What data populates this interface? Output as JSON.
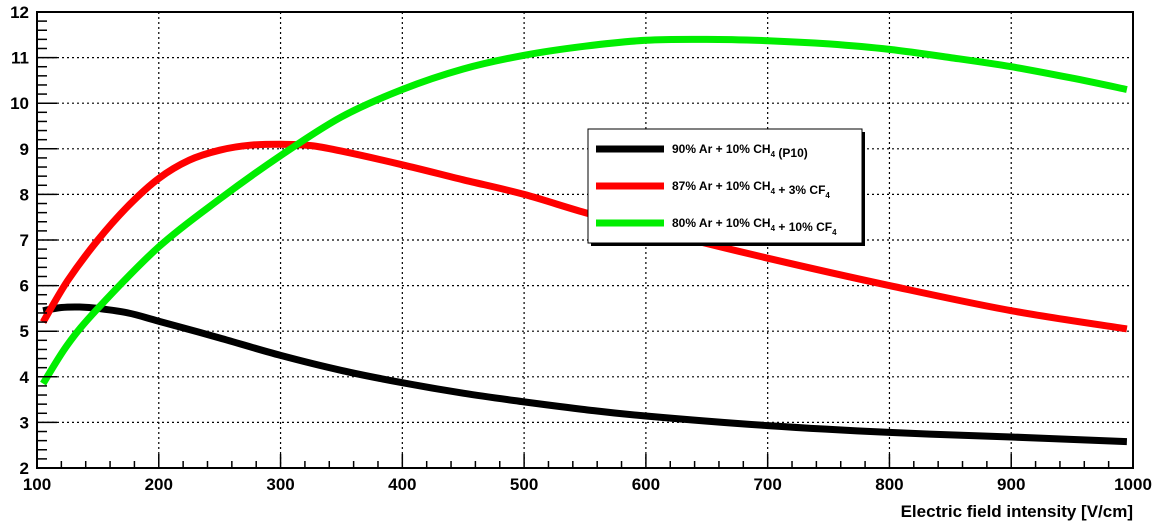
{
  "chart_data": {
    "type": "line",
    "title": "",
    "xlabel": "Electric field intensity [V/cm]",
    "ylabel": "",
    "xlim": [
      100,
      1000
    ],
    "ylim": [
      2,
      12
    ],
    "x_ticks": [
      100,
      200,
      300,
      400,
      500,
      600,
      700,
      800,
      900,
      1000
    ],
    "y_ticks": [
      2,
      3,
      4,
      5,
      6,
      7,
      8,
      9,
      10,
      11,
      12
    ],
    "grid": true,
    "legend_position": "center-right",
    "series": [
      {
        "name": "90% Ar + 10% CH4 (P10)",
        "label_parts": [
          {
            "text": "90% Ar + 10% CH",
            "sub": "4"
          },
          {
            "text": " (P10)",
            "sub": ""
          }
        ],
        "color": "#000000",
        "x": [
          105,
          120,
          135,
          150,
          175,
          200,
          250,
          300,
          350,
          400,
          450,
          500,
          550,
          600,
          700,
          800,
          900,
          995
        ],
        "y": [
          5.45,
          5.52,
          5.53,
          5.5,
          5.4,
          5.22,
          4.85,
          4.47,
          4.14,
          3.87,
          3.64,
          3.45,
          3.28,
          3.14,
          2.93,
          2.78,
          2.68,
          2.58
        ]
      },
      {
        "name": "87% Ar + 10% CH4 + 3% CF4",
        "label_parts": [
          {
            "text": "87% Ar + 10% CH",
            "sub": "4"
          },
          {
            "text": " + 3% CF",
            "sub": "4"
          }
        ],
        "color": "#ff0000",
        "x": [
          105,
          125,
          150,
          175,
          200,
          225,
          250,
          275,
          300,
          325,
          350,
          400,
          450,
          500,
          550,
          600,
          700,
          800,
          900,
          995
        ],
        "y": [
          5.2,
          6.1,
          7.0,
          7.75,
          8.35,
          8.75,
          8.97,
          9.08,
          9.1,
          9.07,
          8.95,
          8.65,
          8.32,
          8.0,
          7.6,
          7.25,
          6.6,
          6.0,
          5.45,
          5.05
        ]
      },
      {
        "name": "80% Ar + 10% CH4 + 10% CF4",
        "label_parts": [
          {
            "text": "80% Ar + 10% CH",
            "sub": "4"
          },
          {
            "text": " + 10% CF",
            "sub": "4"
          }
        ],
        "color": "#00ee00",
        "x": [
          105,
          125,
          150,
          200,
          250,
          300,
          350,
          400,
          450,
          500,
          550,
          600,
          650,
          700,
          750,
          800,
          850,
          900,
          950,
          995
        ],
        "y": [
          3.85,
          4.7,
          5.5,
          6.85,
          7.9,
          8.85,
          9.7,
          10.3,
          10.75,
          11.05,
          11.25,
          11.38,
          11.4,
          11.37,
          11.3,
          11.18,
          11.0,
          10.8,
          10.55,
          10.3
        ]
      }
    ]
  }
}
